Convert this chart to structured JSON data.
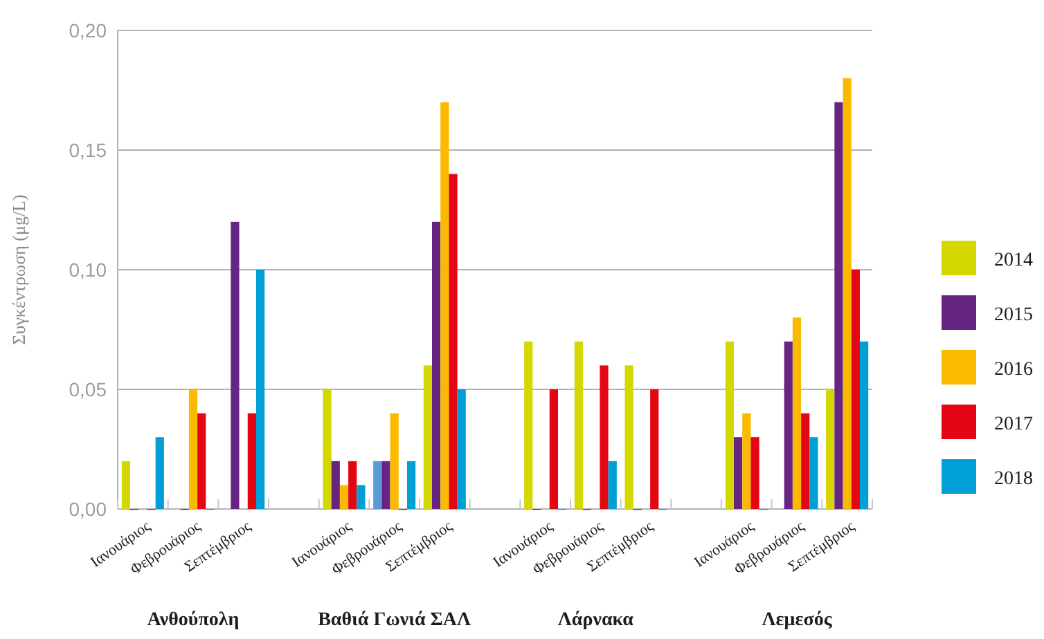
{
  "chart_data": {
    "type": "bar",
    "ylabel": "Συγκέντρωση (μg/L)",
    "categories": [
      "Ιανουάριος",
      "Φεβρουάριος",
      "Σεπτέμβριος",
      null,
      "Ιανουάριος",
      "Φεβρουάριος",
      "Σεπτέμβριος",
      null,
      "Ιανουάριος",
      "Φεβρουάριος",
      "Σεπτέμβριος",
      null,
      "Ιανουάριος",
      "Φεβρουάριος",
      "Σεπτέμβριος"
    ],
    "series": [
      {
        "name": "2014",
        "color": "#d4d800",
        "colors": [
          "#d4d800",
          "#d4d800",
          "#d4d800",
          null,
          "#d4d800",
          "#5b9bd5",
          "#d4d800",
          null,
          "#d4d800",
          "#d4d800",
          "#d4d800",
          null,
          "#d4d800",
          "#d4d800",
          "#d4d800"
        ],
        "values": [
          0.02,
          0,
          0,
          null,
          0.05,
          0.02,
          0.06,
          null,
          0.07,
          0.07,
          0.06,
          null,
          0.07,
          0,
          0.05
        ]
      },
      {
        "name": "2015",
        "color": "#662483",
        "values": [
          0,
          0,
          0.12,
          null,
          0.02,
          0.02,
          0.12,
          null,
          0,
          0,
          0,
          null,
          0.03,
          0.07,
          0.17
        ]
      },
      {
        "name": "2016",
        "color": "#fbb900",
        "values": [
          0,
          0.05,
          0,
          null,
          0.01,
          0.04,
          0.17,
          null,
          0,
          0,
          0,
          null,
          0.04,
          0.08,
          0.18
        ]
      },
      {
        "name": "2017",
        "color": "#e30613",
        "values": [
          0,
          0.04,
          0.04,
          null,
          0.02,
          0,
          0.14,
          null,
          0.05,
          0.06,
          0.05,
          null,
          0.03,
          0.04,
          0.1
        ]
      },
      {
        "name": "2018",
        "color": "#009fd6",
        "values": [
          0.03,
          0,
          0.1,
          null,
          0.01,
          0.02,
          0.05,
          null,
          0,
          0.02,
          0,
          null,
          0,
          0.03,
          0.07
        ]
      }
    ],
    "annotations": [
      "Ανθούπολη",
      "Βαθιά Γωνιά ΣΑΛ",
      "Λάρνακα",
      "Λεμεσός"
    ],
    "ylim": [
      0,
      0.2
    ],
    "yticks": [
      {
        "value": 0,
        "label": "0,00"
      },
      {
        "value": 0.05,
        "label": "0,05"
      },
      {
        "value": 0.1,
        "label": "0,10"
      },
      {
        "value": 0.15,
        "label": "0,15"
      },
      {
        "value": 0.2,
        "label": "0,20"
      }
    ],
    "grid": "y",
    "legend": "right"
  }
}
